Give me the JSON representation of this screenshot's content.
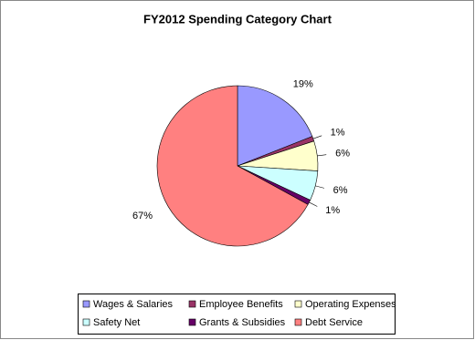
{
  "chart_data": {
    "type": "pie",
    "title": "FY2012 Spending Category Chart",
    "categories": [
      "Wages & Salaries",
      "Employee Benefits",
      "Operating Expenses",
      "Safety Net",
      "Grants & Subsidies",
      "Debt Service"
    ],
    "values": [
      19,
      1,
      6,
      6,
      1,
      67
    ],
    "value_labels": [
      "19%",
      "1%",
      "6%",
      "6%",
      "1%",
      "67%"
    ],
    "colors": [
      "#9999ff",
      "#993366",
      "#ffffcc",
      "#ccffff",
      "#660066",
      "#ff8080"
    ]
  }
}
